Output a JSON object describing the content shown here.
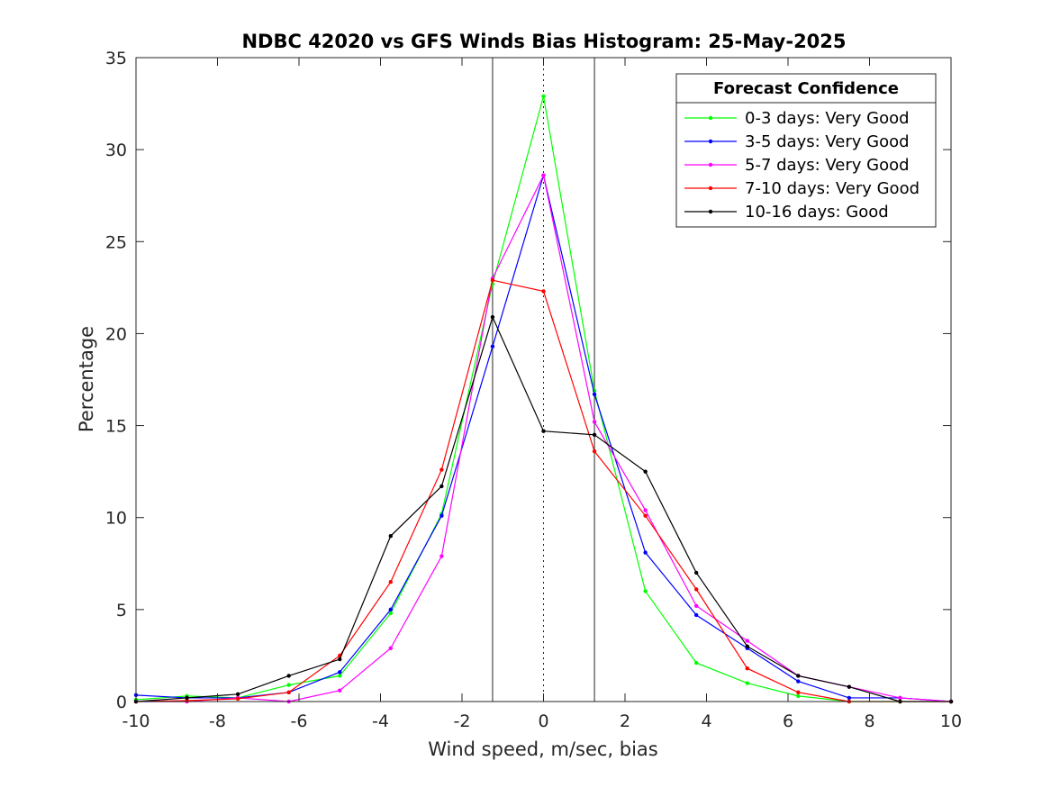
{
  "chart_data": {
    "type": "line",
    "title": "NDBC 42020 vs GFS Winds Bias Histogram: 25-May-2025",
    "xlabel": "Wind speed, m/sec, bias",
    "ylabel": "Percentage",
    "xlim": [
      -10,
      10
    ],
    "ylim": [
      0,
      35
    ],
    "xticks": [
      -10,
      -8,
      -6,
      -4,
      -2,
      0,
      2,
      4,
      6,
      8,
      10
    ],
    "yticks": [
      0,
      5,
      10,
      15,
      20,
      25,
      30,
      35
    ],
    "grid": false,
    "x": [
      -10,
      -8.75,
      -7.5,
      -6.25,
      -5,
      -3.75,
      -2.5,
      -1.25,
      0,
      1.25,
      2.5,
      3.75,
      5,
      6.25,
      7.5,
      8.75,
      10
    ],
    "vertical_lines": [
      {
        "x": -1.25,
        "style": "solid"
      },
      {
        "x": 0,
        "style": "dotted"
      },
      {
        "x": 1.25,
        "style": "solid"
      }
    ],
    "legend": {
      "title": "Forecast Confidence",
      "position": "top-right"
    },
    "series": [
      {
        "name": "0-3 days: Very Good",
        "color": "#00ff00",
        "values": [
          0.1,
          0.3,
          0.2,
          0.9,
          1.4,
          4.8,
          10.2,
          22.7,
          32.9,
          16.9,
          6.0,
          2.1,
          1.0,
          0.3,
          0.0,
          0.0,
          0.0
        ]
      },
      {
        "name": "3-5 days: Very Good",
        "color": "#0000ff",
        "values": [
          0.35,
          0.2,
          0.2,
          0.5,
          1.6,
          5.0,
          10.1,
          19.3,
          28.6,
          16.7,
          8.1,
          4.7,
          2.9,
          1.1,
          0.2,
          0.2,
          0.0
        ]
      },
      {
        "name": "5-7 days: Very Good",
        "color": "#ff00ff",
        "values": [
          0.0,
          0.0,
          0.2,
          0.0,
          0.6,
          2.9,
          7.9,
          23.0,
          28.6,
          15.2,
          10.4,
          5.2,
          3.3,
          1.4,
          0.8,
          0.2,
          0.0
        ]
      },
      {
        "name": "7-10 days: Very Good",
        "color": "#ff0000",
        "values": [
          0.0,
          0.05,
          0.15,
          0.5,
          2.5,
          6.5,
          12.6,
          22.9,
          22.3,
          13.6,
          10.1,
          6.1,
          1.8,
          0.5,
          0.0,
          0.0,
          0.0
        ]
      },
      {
        "name": "10-16 days: Good",
        "color": "#000000",
        "values": [
          0.0,
          0.2,
          0.4,
          1.4,
          2.3,
          9.0,
          11.7,
          20.9,
          14.7,
          14.5,
          12.5,
          7.0,
          3.0,
          1.4,
          0.8,
          0.0,
          0.0
        ]
      }
    ]
  }
}
